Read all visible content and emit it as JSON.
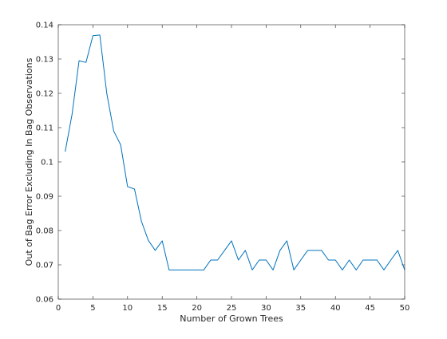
{
  "chart_data": {
    "type": "line",
    "title": "",
    "xlabel": "Number of Grown Trees",
    "ylabel": "Out of Bag Error Excluding In Bag Observations",
    "xlim": [
      0,
      50
    ],
    "ylim": [
      0.06,
      0.14
    ],
    "xticks": [
      0,
      5,
      10,
      15,
      20,
      25,
      30,
      35,
      40,
      45,
      50
    ],
    "yticks": [
      0.06,
      0.07,
      0.08,
      0.09,
      0.1,
      0.11,
      0.12,
      0.13,
      0.14
    ],
    "xtick_labels": [
      "0",
      "5",
      "10",
      "15",
      "20",
      "25",
      "30",
      "35",
      "40",
      "45",
      "50"
    ],
    "ytick_labels": [
      "0.06",
      "0.07",
      "0.08",
      "0.09",
      "0.1",
      "0.11",
      "0.12",
      "0.13",
      "0.14"
    ],
    "grid": false,
    "box": true,
    "colors": {
      "line": "#0072BD",
      "axes": "#262626",
      "background": "#ffffff"
    },
    "series": [
      {
        "x": [
          1,
          2,
          3,
          4,
          5,
          6,
          7,
          8,
          9,
          10,
          11,
          12,
          13,
          14,
          15,
          16,
          17,
          18,
          19,
          20,
          21,
          22,
          23,
          24,
          25,
          26,
          27,
          28,
          29,
          30,
          31,
          32,
          33,
          34,
          35,
          36,
          37,
          38,
          39,
          40,
          41,
          42,
          43,
          44,
          45,
          46,
          47,
          48,
          49,
          50
        ],
        "values": [
          0.103,
          0.114,
          0.1295,
          0.129,
          0.1368,
          0.137,
          0.12,
          0.109,
          0.105,
          0.0928,
          0.0921,
          0.0827,
          0.0771,
          0.0742,
          0.077,
          0.0685,
          0.0685,
          0.0685,
          0.0685,
          0.0685,
          0.0685,
          0.0714,
          0.0714,
          0.0742,
          0.077,
          0.0714,
          0.0742,
          0.0685,
          0.0714,
          0.0714,
          0.0685,
          0.0742,
          0.077,
          0.0685,
          0.0714,
          0.0742,
          0.0742,
          0.0742,
          0.0714,
          0.0714,
          0.0685,
          0.0714,
          0.0685,
          0.0714,
          0.0714,
          0.0714,
          0.0685,
          0.0714,
          0.0742,
          0.0685
        ]
      }
    ]
  }
}
